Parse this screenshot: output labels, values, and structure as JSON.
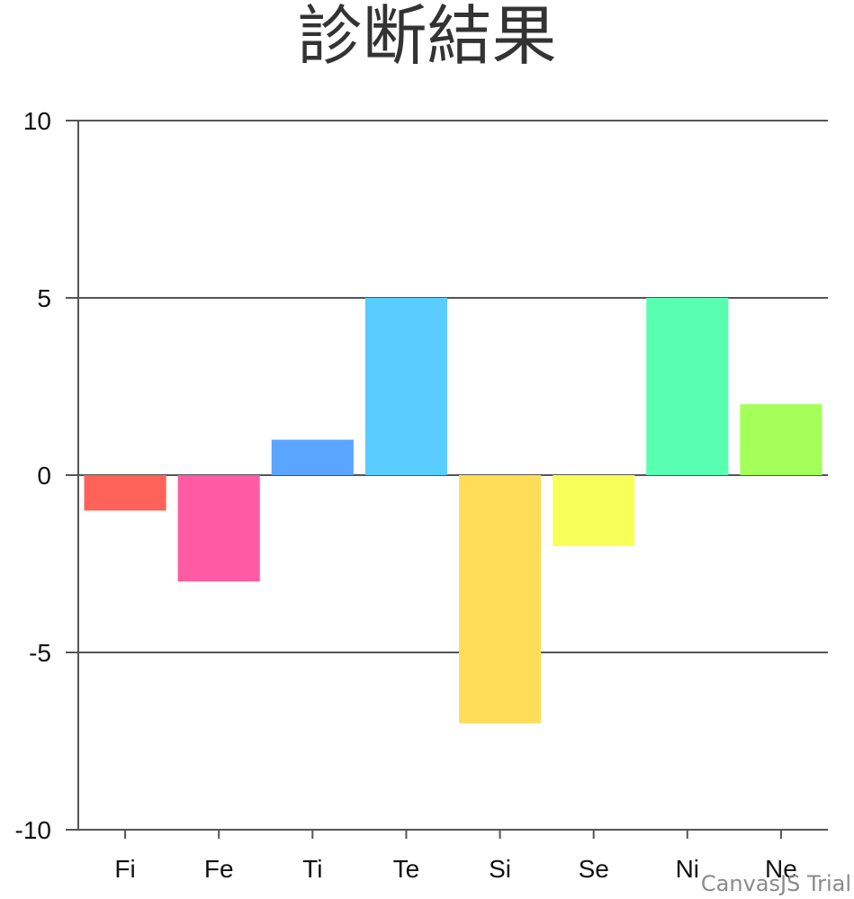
{
  "chart_data": {
    "type": "bar",
    "title": "診断結果",
    "categories": [
      "Fi",
      "Fe",
      "Ti",
      "Te",
      "Si",
      "Se",
      "Ni",
      "Ne"
    ],
    "values": [
      -1,
      -3,
      1,
      5,
      -7,
      -2,
      5,
      2
    ],
    "colors": [
      "#ff6259",
      "#ff5ba4",
      "#59a5ff",
      "#59cdff",
      "#ffdd59",
      "#f7ff59",
      "#59ffb0",
      "#a4ff59"
    ],
    "ylim": [
      -10,
      10
    ],
    "yticks": [
      10,
      5,
      0,
      -5,
      -10
    ],
    "ytick_labels": [
      "10",
      "5",
      "0",
      "-5",
      "-10"
    ],
    "xlabel": "",
    "ylabel": "",
    "grid": true
  },
  "credit": "CanvasJS Trial"
}
